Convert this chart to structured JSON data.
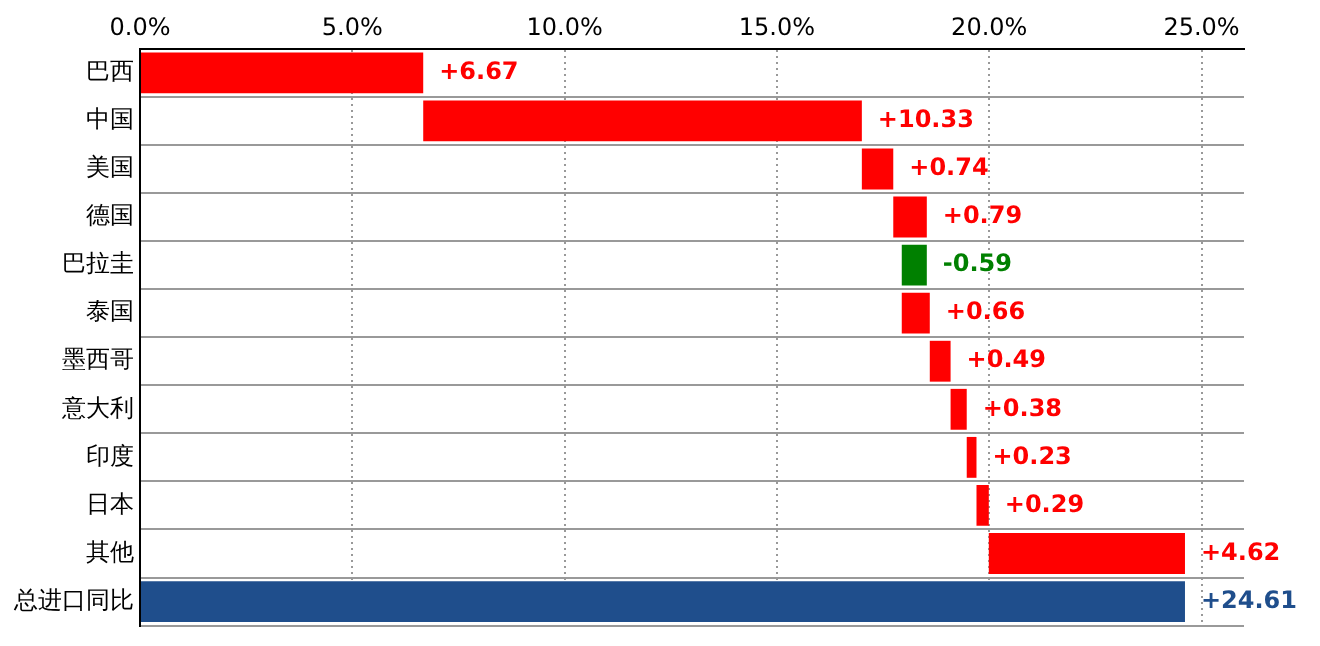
{
  "chart_data": {
    "type": "bar",
    "orientation": "horizontal",
    "categories": [
      "巴西",
      "中国",
      "美国",
      "德国",
      "巴拉圭",
      "泰国",
      "墨西哥",
      "意大利",
      "印度",
      "日本",
      "其他",
      "总进口同比"
    ],
    "values": [
      6.67,
      10.33,
      0.74,
      0.79,
      -0.59,
      0.66,
      0.49,
      0.38,
      0.23,
      0.29,
      4.62,
      24.61
    ],
    "base": [
      0,
      6.67,
      17.0,
      17.74,
      18.53,
      17.94,
      18.6,
      19.09,
      19.47,
      19.7,
      19.99,
      0
    ],
    "colors": [
      "#ff0000",
      "#ff0000",
      "#ff0000",
      "#ff0000",
      "#008000",
      "#ff0000",
      "#ff0000",
      "#ff0000",
      "#ff0000",
      "#ff0000",
      "#ff0000",
      "#1f4e8c"
    ],
    "value_labels": [
      "+6.67",
      "+10.33",
      "+0.74",
      "+0.79",
      "-0.59",
      "+0.66",
      "+0.49",
      "+0.38",
      "+0.23",
      "+0.29",
      "+4.62",
      "+24.61"
    ],
    "xlim": [
      0,
      26
    ],
    "xticks": [
      {
        "value": 0,
        "label": "0.0%"
      },
      {
        "value": 5,
        "label": "5.0%"
      },
      {
        "value": 10,
        "label": "10.0%"
      },
      {
        "value": 15,
        "label": "15.0%"
      },
      {
        "value": 20,
        "label": "20.0%"
      },
      {
        "value": 25,
        "label": "25.0%"
      }
    ],
    "grid": true,
    "legend": false
  }
}
